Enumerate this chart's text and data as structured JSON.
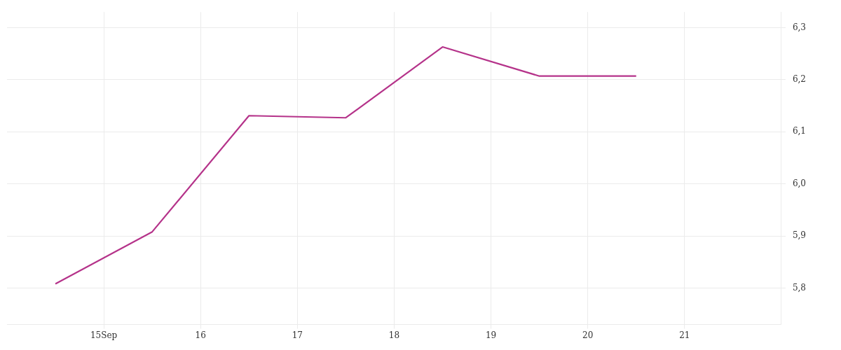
{
  "chart_data": {
    "type": "line",
    "x": [
      14.5,
      15.5,
      16.5,
      17.5,
      18.5,
      19.5,
      20.5
    ],
    "series": [
      {
        "color": "#b5338a",
        "values": [
          5.808,
          5.908,
          6.131,
          6.127,
          6.263,
          6.207,
          6.207
        ]
      }
    ],
    "xlim": [
      14,
      22
    ],
    "xticks": [
      {
        "value": 15,
        "label": "15Sep"
      },
      16,
      17,
      18,
      19,
      20,
      21
    ],
    "ylim": [
      5.73,
      6.33
    ],
    "yticks": [
      {
        "value": 5.8,
        "label": "5,8"
      },
      {
        "value": 5.9,
        "label": "5,9"
      },
      {
        "value": 6.0,
        "label": "6,0"
      },
      {
        "value": 6.1,
        "label": "6,1"
      },
      {
        "value": 6.2,
        "label": "6,2"
      },
      {
        "value": 6.3,
        "label": "6,3"
      }
    ],
    "grid": true,
    "legend": false,
    "marker": "none",
    "line_style": "solid"
  }
}
